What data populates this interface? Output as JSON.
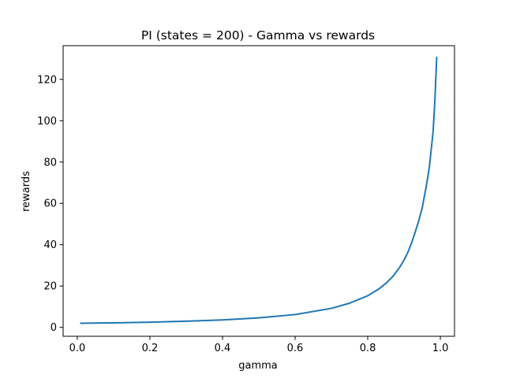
{
  "chart_data": {
    "type": "line",
    "title": "PI (states = 200) - Gamma vs rewards",
    "xlabel": "gamma",
    "ylabel": "rewards",
    "xlim": [
      -0.039,
      1.039
    ],
    "ylim": [
      -4.3,
      136.3
    ],
    "grid": false,
    "x_ticks": [
      0.0,
      0.2,
      0.4,
      0.6,
      0.8,
      1.0
    ],
    "x_tick_labels": [
      "0.0",
      "0.2",
      "0.4",
      "0.6",
      "0.8",
      "1.0"
    ],
    "y_ticks": [
      0,
      20,
      40,
      60,
      80,
      100,
      120
    ],
    "y_tick_labels": [
      "0",
      "20",
      "40",
      "60",
      "80",
      "100",
      "120"
    ],
    "series": [
      {
        "color": "#1f77b4",
        "x": [
          0.01,
          0.1,
          0.2,
          0.3,
          0.4,
          0.5,
          0.6,
          0.7,
          0.75,
          0.8,
          0.83,
          0.85,
          0.87,
          0.89,
          0.9,
          0.91,
          0.92,
          0.93,
          0.94,
          0.95,
          0.96,
          0.965,
          0.97,
          0.975,
          0.98,
          0.985,
          0.99
        ],
        "y": [
          2.0,
          2.2,
          2.5,
          3.0,
          3.6,
          4.6,
          6.2,
          9.2,
          11.7,
          15.3,
          18.5,
          21.3,
          24.8,
          29.6,
          32.6,
          36.1,
          40.5,
          45.7,
          51.3,
          57.8,
          67.1,
          72.2,
          78.0,
          86.3,
          94.5,
          110.0,
          130.5
        ]
      }
    ]
  }
}
